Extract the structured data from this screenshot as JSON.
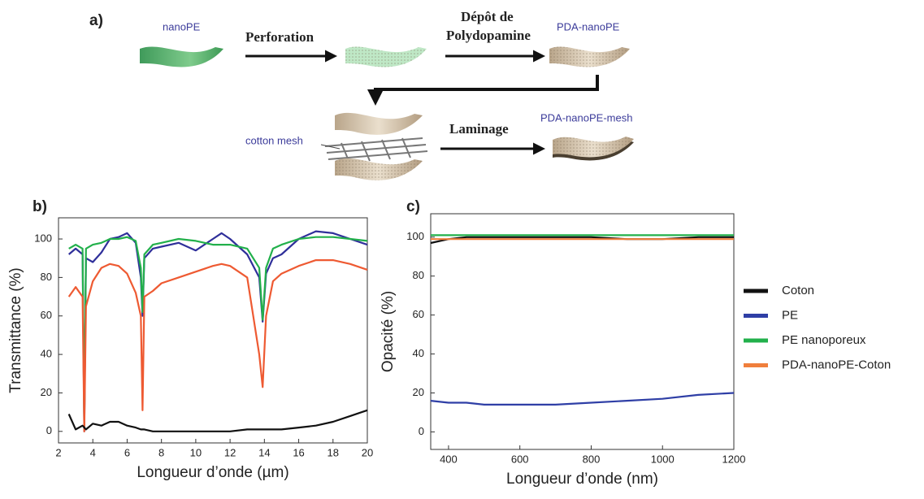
{
  "diagram": {
    "label": "a)",
    "nodes": [
      "nanoPE",
      "PDA-nanoPE",
      "cotton mesh",
      "PDA-nanoPE-mesh"
    ],
    "arrows": [
      "Perforation",
      "Dépôt de",
      "Polydopamine",
      "Laminage"
    ]
  },
  "chart_data": [
    {
      "type": "line",
      "label": "b)",
      "xlabel": "Longueur d’onde (µm)",
      "ylabel": "Transmittance (%)",
      "xlim": [
        2,
        20
      ],
      "ylim": [
        -6,
        111
      ],
      "xticks": [
        2,
        4,
        6,
        8,
        10,
        12,
        14,
        16,
        18,
        20
      ],
      "yticks": [
        0,
        20,
        40,
        60,
        80,
        100
      ],
      "x": [
        2.6,
        3,
        3.4,
        3.5,
        3.6,
        4,
        4.5,
        5,
        5.5,
        6,
        6.5,
        6.8,
        6.9,
        7,
        7.5,
        8,
        9,
        10,
        11,
        11.5,
        12,
        13,
        13.7,
        13.9,
        14.1,
        14.5,
        15,
        16,
        17,
        18,
        19,
        20
      ],
      "series": [
        {
          "color": "#2f2f9a",
          "values": [
            92,
            95,
            92,
            0,
            90,
            88,
            93,
            100,
            101,
            103,
            98,
            80,
            60,
            90,
            95,
            96,
            98,
            94,
            100,
            103,
            100,
            92,
            80,
            57,
            82,
            90,
            92,
            100,
            104,
            103,
            100,
            97
          ]
        },
        {
          "color": "#22b04b",
          "values": [
            95,
            97,
            95,
            2,
            95,
            97,
            98,
            100,
            100,
            101,
            99,
            85,
            62,
            92,
            97,
            98,
            100,
            99,
            97,
            97,
            97,
            95,
            85,
            58,
            85,
            95,
            97,
            100,
            101,
            101,
            100,
            99
          ]
        },
        {
          "color": "#ee5a32",
          "values": [
            70,
            75,
            70,
            0,
            65,
            78,
            85,
            87,
            86,
            82,
            72,
            60,
            11,
            70,
            73,
            77,
            80,
            83,
            86,
            87,
            86,
            80,
            40,
            23,
            60,
            78,
            82,
            86,
            89,
            89,
            87,
            84
          ]
        },
        {
          "color": "#111111",
          "values": [
            9,
            1,
            3,
            2,
            1,
            4,
            3,
            5,
            5,
            3,
            2,
            1,
            1,
            1,
            0,
            0,
            0,
            0,
            0,
            0,
            0,
            1,
            1,
            1,
            1,
            1,
            1,
            2,
            3,
            5,
            8,
            11
          ]
        }
      ]
    },
    {
      "type": "line",
      "label": "c)",
      "xlabel": "Longueur d’onde (nm)",
      "ylabel": "Opacité (%)",
      "xlim": [
        350,
        1200
      ],
      "ylim": [
        -9,
        112
      ],
      "xticks": [
        400,
        600,
        800,
        1000,
        1200
      ],
      "yticks": [
        0,
        20,
        40,
        60,
        80,
        100
      ],
      "x": [
        350,
        400,
        450,
        500,
        600,
        700,
        800,
        900,
        1000,
        1100,
        1200
      ],
      "series": [
        {
          "name": "Coton",
          "color": "#111111",
          "values": [
            97,
            99,
            100,
            100,
            100,
            100,
            100,
            99,
            99,
            100,
            100
          ]
        },
        {
          "name": "PE",
          "color": "#2f3fa6",
          "values": [
            16,
            15,
            15,
            14,
            14,
            14,
            15,
            16,
            17,
            19,
            20
          ]
        },
        {
          "name": "PE nanoporeux",
          "color": "#22b04b",
          "values": [
            101,
            101,
            101,
            101,
            101,
            101,
            101,
            101,
            101,
            101,
            101
          ]
        },
        {
          "name": "PDA-nanoPE-Coton",
          "color": "#f07f3c",
          "values": [
            99,
            99,
            99,
            99,
            99,
            99,
            99,
            99,
            99,
            99,
            99
          ]
        }
      ]
    }
  ]
}
